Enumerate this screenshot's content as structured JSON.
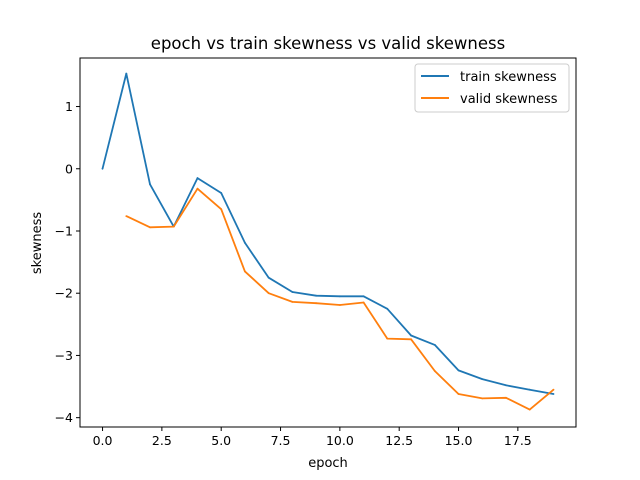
{
  "chart_data": {
    "type": "line",
    "title": "epoch vs train skewness vs valid skewness",
    "xlabel": "epoch",
    "ylabel": "skewness",
    "xlim": [
      -0.95,
      19.95
    ],
    "ylim": [
      -4.15,
      1.78
    ],
    "x_ticks": [
      0,
      2.5,
      5,
      7.5,
      10,
      12.5,
      15,
      17.5
    ],
    "x_tick_labels": [
      "0.0",
      "2.5",
      "5.0",
      "7.5",
      "10.0",
      "12.5",
      "15.0",
      "17.5"
    ],
    "y_ticks": [
      -4,
      -3,
      -2,
      -1,
      0,
      1
    ],
    "y_tick_labels": [
      "−4",
      "−3",
      "−2",
      "−1",
      "0",
      "1"
    ],
    "grid": false,
    "legend_position": "top-right",
    "series": [
      {
        "name": "train skewness",
        "color": "#1f77b4",
        "x": [
          0,
          1,
          2,
          3,
          4,
          5,
          6,
          7,
          8,
          9,
          10,
          11,
          12,
          13,
          14,
          15,
          16,
          17,
          18,
          19
        ],
        "y": [
          0.0,
          1.53,
          -0.25,
          -0.93,
          -0.15,
          -0.39,
          -1.19,
          -1.75,
          -1.98,
          -2.04,
          -2.05,
          -2.05,
          -2.25,
          -2.68,
          -2.83,
          -3.24,
          -3.38,
          -3.48,
          -3.55,
          -3.62
        ]
      },
      {
        "name": "valid skewness",
        "color": "#ff7f0e",
        "x": [
          1,
          2,
          3,
          4,
          5,
          6,
          7,
          8,
          9,
          10,
          11,
          12,
          13,
          14,
          15,
          16,
          17,
          18,
          19
        ],
        "y": [
          -0.76,
          -0.94,
          -0.93,
          -0.32,
          -0.65,
          -1.65,
          -2.0,
          -2.14,
          -2.16,
          -2.19,
          -2.15,
          -2.73,
          -2.74,
          -3.25,
          -3.62,
          -3.69,
          -3.68,
          -3.87,
          -3.55
        ]
      }
    ]
  }
}
